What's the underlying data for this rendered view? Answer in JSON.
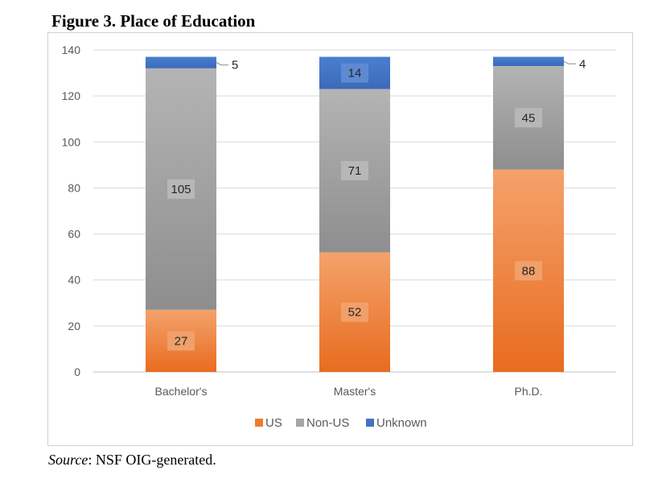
{
  "figure": {
    "title": "Figure 3. Place of Education",
    "source_label": "Source",
    "source_text": ": NSF OIG-generated."
  },
  "colors": {
    "US": "#ed7d31",
    "Non-US": "#a5a5a5",
    "Unknown": "#4472c4"
  },
  "chart_data": {
    "type": "bar",
    "stacked": true,
    "categories": [
      "Bachelor's",
      "Master's",
      "Ph.D."
    ],
    "series": [
      {
        "name": "US",
        "values": [
          27,
          52,
          88
        ]
      },
      {
        "name": "Non-US",
        "values": [
          105,
          71,
          45
        ]
      },
      {
        "name": "Unknown",
        "values": [
          5,
          14,
          4
        ]
      }
    ],
    "ylim": [
      0,
      140
    ],
    "yticks": [
      0,
      20,
      40,
      60,
      80,
      100,
      120,
      140
    ],
    "grid": true,
    "legend": "bottom"
  }
}
